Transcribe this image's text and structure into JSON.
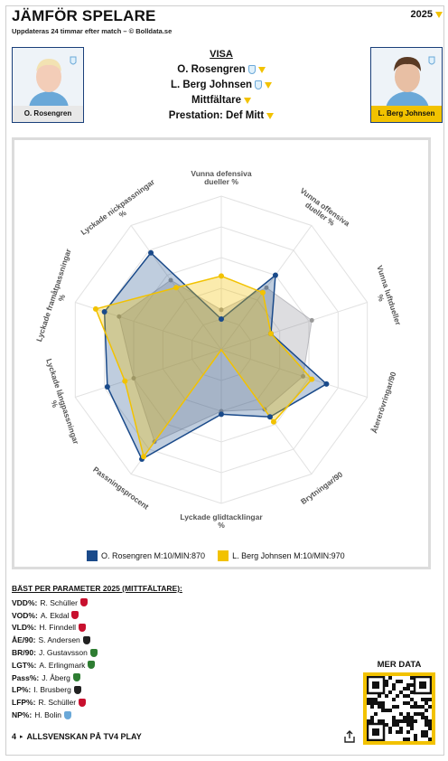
{
  "header": {
    "title": "JÄMFÖR SPELARE",
    "subtitle": "Uppdateras 24 timmar efter match – © Bolldata.se",
    "year": "2025"
  },
  "players": {
    "left": {
      "name": "O. Rosengren",
      "color": "#1a4a8a"
    },
    "right": {
      "name": "L. Berg Johnsen",
      "color": "#f2c200"
    }
  },
  "visa": {
    "heading": "VISA",
    "player1": "O. Rosengren",
    "player2": "L. Berg Johnsen",
    "position": "Mittfältare",
    "prestation": "Prestation: Def Mitt"
  },
  "chart_data": {
    "type": "radar",
    "axes": [
      "Vunna defensiva dueller %",
      "Vunna offensiva dueller %",
      "Vunna luftdueller %",
      "Återerövringar/90",
      "Brytningar/90",
      "Lyckade glidtacklingar %",
      "Passningsprocent",
      "Lyckade långpassningar %",
      "Lyckade framåtpassningar %",
      "Lyckade nickpassningar %"
    ],
    "rmax": 5,
    "series": [
      {
        "name": "O. Rosengren M:10/MIN:870",
        "color": "#1a4a8a",
        "values": [
          1,
          3,
          1.7,
          3.6,
          2.7,
          2.1,
          4.4,
          3.9,
          4,
          3.9
        ]
      },
      {
        "name": "L. Berg Johnsen M:10/MIN:970",
        "color": "#f2c200",
        "values": [
          2.4,
          2.3,
          1.7,
          3.1,
          2.9,
          0,
          4.3,
          3.3,
          4.3,
          2.5
        ]
      }
    ],
    "grey_values": [
      1.3,
      2.5,
      3.1,
      2.8,
      2.4,
      2.0,
      3.7,
      3.0,
      3.5,
      2.8
    ]
  },
  "legend": {
    "left": "O. Rosengren M:10/MIN:870",
    "right": "L. Berg Johnsen M:10/MIN:970"
  },
  "best": {
    "heading": "BÄST PER PARAMETER 2025 (MITTFÄLTARE):",
    "rows": [
      {
        "key": "VDD%:",
        "name": "R. Schüller",
        "club_color": "#c8102e"
      },
      {
        "key": "VOD%:",
        "name": "A. Ekdal",
        "club_color": "#c8102e"
      },
      {
        "key": "VLD%:",
        "name": "H. Finndell",
        "club_color": "#c8102e"
      },
      {
        "key": "ÅE/90:",
        "name": "S. Andersen",
        "club_color": "#222222"
      },
      {
        "key": "BR/90:",
        "name": "J. Gustavsson",
        "club_color": "#2e7d32"
      },
      {
        "key": "LGT%:",
        "name": "A. Erlingmark",
        "club_color": "#2e7d32"
      },
      {
        "key": "Pass%:",
        "name": "J. Åberg",
        "club_color": "#2e7d32"
      },
      {
        "key": "LP%:",
        "name": "I. Brusberg",
        "club_color": "#222222"
      },
      {
        "key": "LFP%:",
        "name": "R. Schüller",
        "club_color": "#c8102e"
      },
      {
        "key": "NP%:",
        "name": "H. Bolin",
        "club_color": "#6aa8d8"
      }
    ]
  },
  "footer": {
    "number": "4",
    "text": "ALLSVENSKAN PÅ TV4 PLAY",
    "mer_data": "MER DATA"
  }
}
